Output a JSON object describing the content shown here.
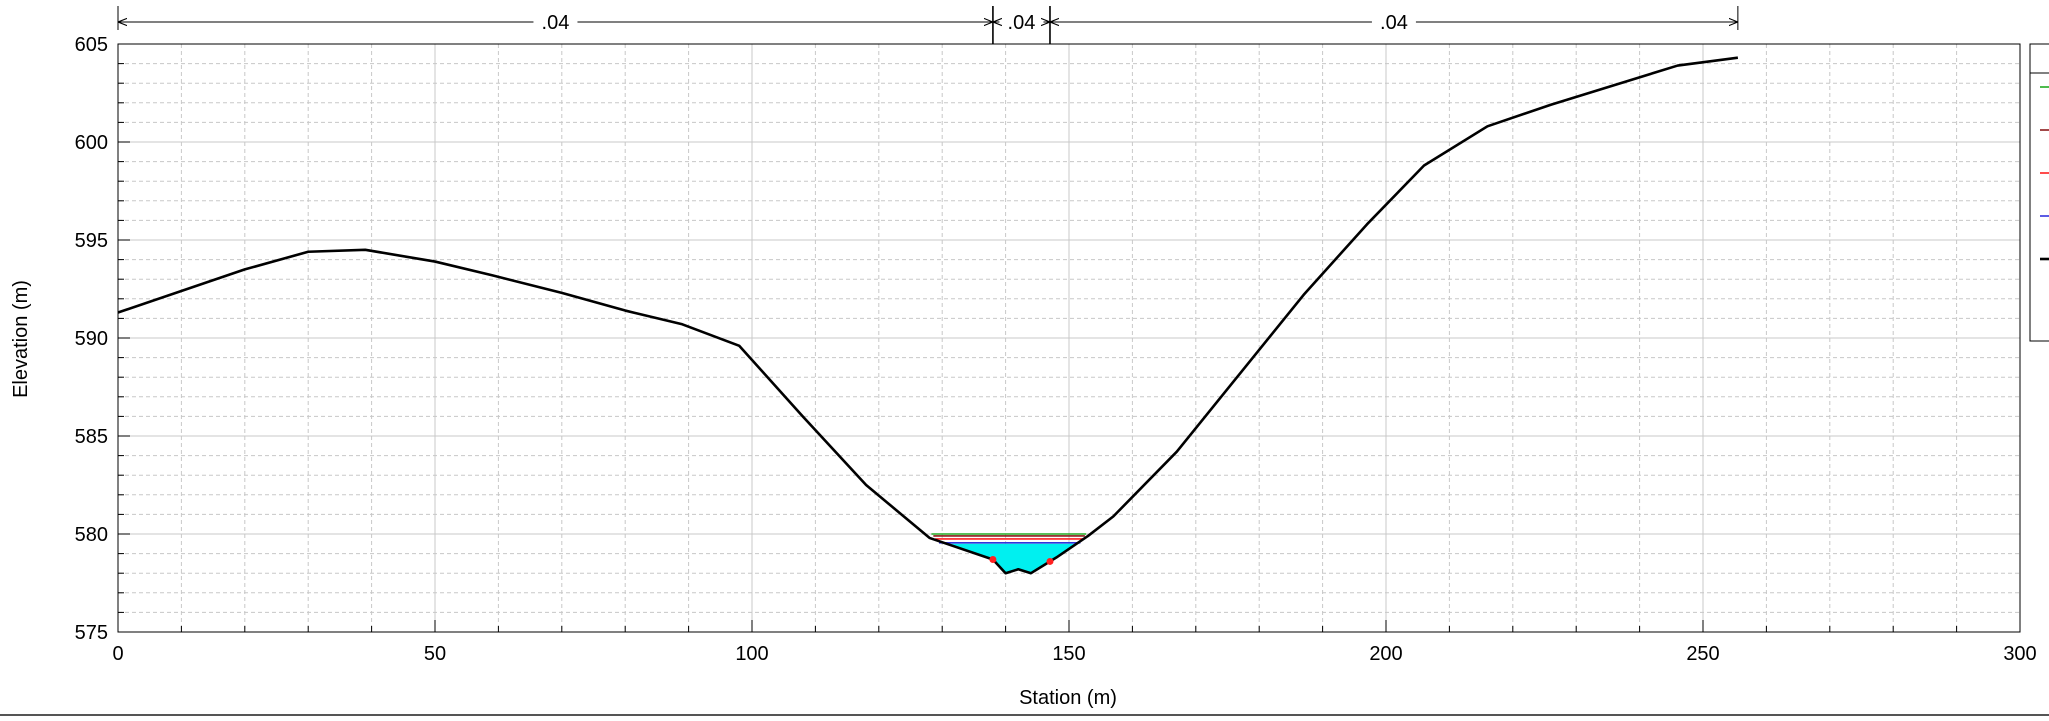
{
  "chart_data": {
    "type": "line",
    "title": "",
    "xlabel": "Station (m)",
    "ylabel": "Elevation (m)",
    "xlim": [
      0,
      300
    ],
    "ylim": [
      575,
      605
    ],
    "x_ticks": [
      0,
      50,
      100,
      150,
      200,
      250,
      300
    ],
    "y_ticks": [
      575,
      580,
      585,
      590,
      595,
      600,
      605
    ],
    "x_minor_step": 10,
    "y_minor_step": 1,
    "grid": true,
    "legend": "right (cropped)",
    "ground": [
      [
        0,
        591.3
      ],
      [
        20,
        593.5
      ],
      [
        30,
        594.4
      ],
      [
        39,
        594.5
      ],
      [
        50,
        593.9
      ],
      [
        59,
        593.2
      ],
      [
        70,
        592.3
      ],
      [
        80,
        591.4
      ],
      [
        89,
        590.7
      ],
      [
        98,
        589.6
      ],
      [
        108,
        586.0
      ],
      [
        118,
        582.5
      ],
      [
        128,
        579.8
      ],
      [
        138,
        578.7
      ],
      [
        140,
        578.0
      ],
      [
        142,
        578.2
      ],
      [
        144,
        578.0
      ],
      [
        148,
        578.8
      ],
      [
        153,
        579.9
      ],
      [
        157,
        580.9
      ],
      [
        167,
        584.2
      ],
      [
        177,
        588.2
      ],
      [
        187,
        592.2
      ],
      [
        197,
        595.8
      ],
      [
        206,
        598.8
      ],
      [
        216,
        600.8
      ],
      [
        226,
        601.9
      ],
      [
        246,
        603.9
      ],
      [
        255.5,
        604.3
      ]
    ],
    "water_surface": 579.5,
    "water_levels": [
      {
        "color": "#22aa22",
        "elevation": 580.0,
        "x": [
          128.3,
          152.7
        ]
      },
      {
        "color": "#8b1a1a",
        "elevation": 579.9,
        "x": [
          128.6,
          152.5
        ]
      },
      {
        "color": "#ff2020",
        "elevation": 579.75,
        "x": [
          128.9,
          152.3
        ]
      },
      {
        "color": "#3333dd",
        "elevation": 579.55,
        "x": [
          129.5,
          151.8
        ]
      }
    ],
    "bank_stations": [
      138,
      147
    ],
    "mannings_n": [
      {
        "label": ".04",
        "from": 0,
        "to": 138
      },
      {
        "label": ".04",
        "from": 138,
        "to": 147
      },
      {
        "label": ".04",
        "from": 147,
        "to": 255.5
      }
    ]
  },
  "colors": {
    "ground": "#000000",
    "water_fill": "#00f0f0",
    "bank_marker": "#ff2020",
    "grid": "#c8c8c8"
  },
  "legend": {
    "swatches": [
      "#22aa22",
      "#8b1a1a",
      "#ff2020",
      "#3333dd",
      "#000000"
    ]
  }
}
